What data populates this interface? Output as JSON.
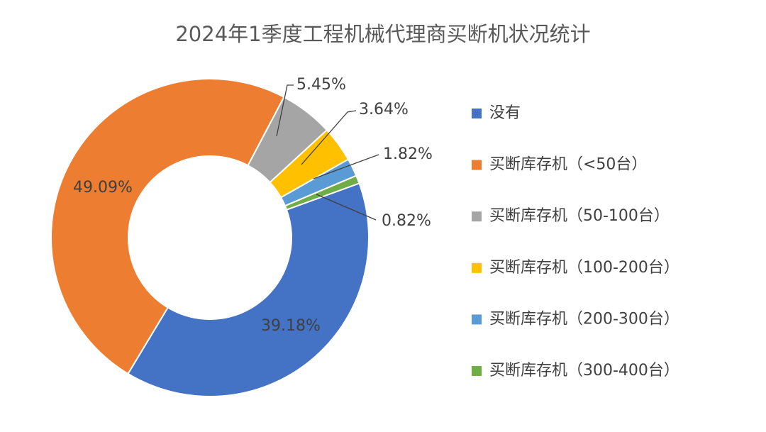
{
  "chart_data": {
    "type": "pie",
    "donut": true,
    "title": "2024年1季度工程机械代理商买断机状况统计",
    "categories": [
      "没有",
      "买断库存机（<50台）",
      "买断库存机（50-100台）",
      "买断库存机（100-200台）",
      "买断库存机（200-300台）",
      "买断库存机（300-400台）"
    ],
    "values": [
      39.18,
      49.09,
      5.45,
      3.64,
      1.82,
      0.82
    ],
    "value_labels": [
      "39.18%",
      "49.09%",
      "5.45%",
      "3.64%",
      "1.82%",
      "0.82%"
    ],
    "colors": [
      "#4472c4",
      "#ed7d31",
      "#a5a5a5",
      "#ffc000",
      "#5b9bd5",
      "#70ad47"
    ],
    "legend": "right"
  }
}
